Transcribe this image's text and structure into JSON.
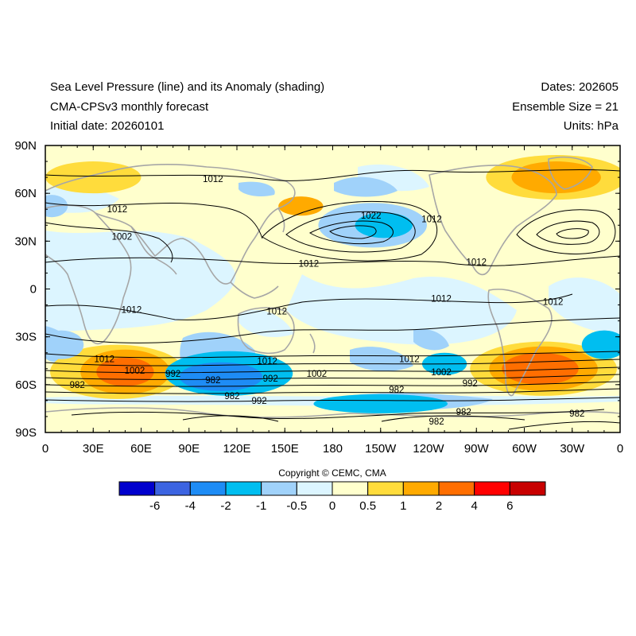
{
  "header": {
    "title": "Sea Level Pressure (line) and its Anomaly (shading)",
    "model": "CMA-CPSv3 monthly forecast",
    "initial_date": "Initial date: 20260101",
    "dates": "Dates: 202605",
    "ensemble": "Ensemble Size = 21",
    "units": "Units: hPa"
  },
  "axes": {
    "lat_labels": [
      "90N",
      "60N",
      "30N",
      "0",
      "30S",
      "60S",
      "90S"
    ],
    "lon_labels": [
      "0",
      "30E",
      "60E",
      "90E",
      "120E",
      "150E",
      "180",
      "150W",
      "120W",
      "90W",
      "60W",
      "30W",
      "0"
    ]
  },
  "contour_labels": [
    {
      "text": "1012",
      "lon": 105,
      "lat": 69
    },
    {
      "text": "1012",
      "lon": 45,
      "lat": 50
    },
    {
      "text": "1002",
      "lon": 48,
      "lat": 33
    },
    {
      "text": "1022",
      "lon": 204,
      "lat": 46
    },
    {
      "text": "1012",
      "lon": 242,
      "lat": 44
    },
    {
      "text": "1012",
      "lon": 270,
      "lat": 17
    },
    {
      "text": "1012",
      "lon": 165,
      "lat": 16
    },
    {
      "text": "1012",
      "lon": 54,
      "lat": -13
    },
    {
      "text": "1012",
      "lon": 145,
      "lat": -14
    },
    {
      "text": "1012",
      "lon": 248,
      "lat": -6
    },
    {
      "text": "1012",
      "lon": 318,
      "lat": -8
    },
    {
      "text": "1012",
      "lon": 37,
      "lat": -44
    },
    {
      "text": "1002",
      "lon": 56,
      "lat": -51
    },
    {
      "text": "992",
      "lon": 80,
      "lat": -53
    },
    {
      "text": "982",
      "lon": 20,
      "lat": -60
    },
    {
      "text": "982",
      "lon": 105,
      "lat": -57
    },
    {
      "text": "1012",
      "lon": 139,
      "lat": -45
    },
    {
      "text": "992",
      "lon": 141,
      "lat": -56
    },
    {
      "text": "1002",
      "lon": 170,
      "lat": -53
    },
    {
      "text": "1012",
      "lon": 228,
      "lat": -44
    },
    {
      "text": "1002",
      "lon": 248,
      "lat": -52
    },
    {
      "text": "992",
      "lon": 266,
      "lat": -59
    },
    {
      "text": "982",
      "lon": 220,
      "lat": -63
    },
    {
      "text": "982",
      "lon": 117,
      "lat": -67
    },
    {
      "text": "992",
      "lon": 134,
      "lat": -70
    },
    {
      "text": "982",
      "lon": 262,
      "lat": -77
    },
    {
      "text": "982",
      "lon": 245,
      "lat": -83
    },
    {
      "text": "982",
      "lon": 333,
      "lat": -78
    }
  ],
  "colorbar": {
    "copyright": "Copyright © CEMC, CMA",
    "colors": [
      "#0000cd",
      "#3c64e1",
      "#1e8cf5",
      "#00bef0",
      "#a0d2fa",
      "#dcf5ff",
      "#ffffcd",
      "#ffdc3c",
      "#ffaa00",
      "#ff6e00",
      "#ff0000",
      "#c80000"
    ],
    "labels": [
      "-6",
      "-4",
      "-2",
      "-1",
      "-0.5",
      "0",
      "0.5",
      "1",
      "2",
      "4",
      "6"
    ]
  },
  "anomaly_features": [
    {
      "lon": 50,
      "lat": -52,
      "rx": 18,
      "ry": 9,
      "level": 3
    },
    {
      "lon": 50,
      "lat": -52,
      "rx": 28,
      "ry": 14,
      "level": 2
    },
    {
      "lon": 45,
      "lat": -52,
      "rx": 42,
      "ry": 17,
      "level": 1
    },
    {
      "lon": 310,
      "lat": -50,
      "rx": 24,
      "ry": 10,
      "level": 3
    },
    {
      "lon": 312,
      "lat": -50,
      "rx": 34,
      "ry": 14,
      "level": 2
    },
    {
      "lon": 312,
      "lat": -50,
      "rx": 46,
      "ry": 17,
      "level": 1
    },
    {
      "lon": 320,
      "lat": 70,
      "rx": 28,
      "ry": 10,
      "level": 2
    },
    {
      "lon": 320,
      "lat": 70,
      "rx": 44,
      "ry": 14,
      "level": 1
    },
    {
      "lon": 30,
      "lat": 70,
      "rx": 30,
      "ry": 10,
      "level": 1
    },
    {
      "lon": 160,
      "lat": 52,
      "rx": 14,
      "ry": 6,
      "level": 2
    },
    {
      "lon": 110,
      "lat": -55,
      "rx": 26,
      "ry": 9,
      "level": -3
    },
    {
      "lon": 115,
      "lat": -53,
      "rx": 40,
      "ry": 14,
      "level": -2
    },
    {
      "lon": 212,
      "lat": 40,
      "rx": 18,
      "ry": 8,
      "level": -2
    },
    {
      "lon": 205,
      "lat": 40,
      "rx": 34,
      "ry": 14,
      "level": -1
    },
    {
      "lon": 210,
      "lat": -72,
      "rx": 42,
      "ry": 6,
      "level": -2
    },
    {
      "lon": 250,
      "lat": -47,
      "rx": 14,
      "ry": 7,
      "level": -2
    },
    {
      "lon": 350,
      "lat": -35,
      "rx": 14,
      "ry": 9,
      "level": -2
    },
    {
      "lon": 10,
      "lat": -35,
      "rx": 14,
      "ry": 9,
      "level": -1
    },
    {
      "lon": 4,
      "lat": 52,
      "rx": 10,
      "ry": 7,
      "level": -1
    }
  ]
}
